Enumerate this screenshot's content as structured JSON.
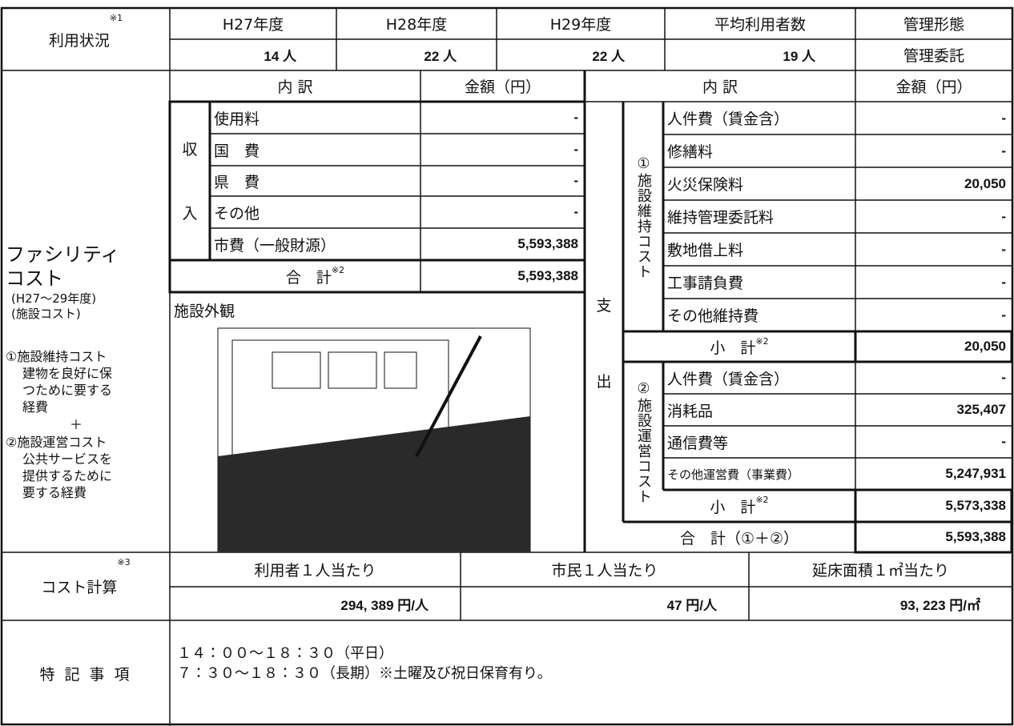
{
  "usage": {
    "label": "利用状況",
    "label_sup": "※1",
    "headers": [
      "H27年度",
      "H28年度",
      "H29年度",
      "平均利用者数",
      "管理形態"
    ],
    "values": [
      "14 人",
      "22 人",
      "22 人",
      "19 人",
      "管理委託"
    ]
  },
  "facility_cost": {
    "label_lines": [
      "ファシリティ",
      "コスト"
    ],
    "period": "(H27～29年度)",
    "sub": "(施設コスト)",
    "notes": [
      "①施設維持コスト",
      "建物を良好に保",
      "つために要する",
      "経費",
      "＋",
      "②施設運営コスト",
      "公共サービスを",
      "提供するために",
      "要する経費"
    ],
    "revenue": {
      "header_item": "内 訳",
      "header_amount": "金額（円）",
      "side": [
        "収",
        "入"
      ],
      "rows": [
        {
          "item": "使用料",
          "amount": "-"
        },
        {
          "item": "国　費",
          "amount": "-"
        },
        {
          "item": "県　費",
          "amount": "-"
        },
        {
          "item": "その他",
          "amount": "-"
        },
        {
          "item": "市費（一般財源）",
          "amount": "5,593,388"
        }
      ],
      "total": {
        "label": "合　計",
        "sup": "※2",
        "amount": "5,593,388"
      }
    },
    "photo_label": "施設外観",
    "expenditure": {
      "header_item": "内 訳",
      "header_amount": "金額（円）",
      "side": [
        "支",
        "出"
      ],
      "maintenance": {
        "label": "①施設維持コスト",
        "rows": [
          {
            "item": "人件費（賃金含）",
            "amount": "-"
          },
          {
            "item": "修繕料",
            "amount": "-"
          },
          {
            "item": "火災保険料",
            "amount": "20,050"
          },
          {
            "item": "維持管理委託料",
            "amount": "-"
          },
          {
            "item": "敷地借上料",
            "amount": "-"
          },
          {
            "item": "工事請負費",
            "amount": "-"
          },
          {
            "item": "その他維持費",
            "amount": "-"
          }
        ],
        "subtotal": {
          "label": "小　計",
          "sup": "※2",
          "amount": "20,050"
        }
      },
      "operation": {
        "label": "②施設運営コスト",
        "rows": [
          {
            "item": "人件費（賃金含）",
            "amount": "-"
          },
          {
            "item": "消耗品",
            "amount": "325,407"
          },
          {
            "item": "通信費等",
            "amount": "-"
          },
          {
            "item": "その他運営費（事業費）",
            "amount": "5,247,931"
          }
        ],
        "subtotal": {
          "label": "小　計",
          "sup": "※2",
          "amount": "5,573,338"
        }
      },
      "total": {
        "label": "合　計（①＋②）",
        "amount": "5,593,388"
      }
    }
  },
  "cost_calc": {
    "label": "コスト計算",
    "sup": "※3",
    "headers": [
      "利用者１人当たり",
      "市民１人当たり",
      "延床面積１㎡当たり"
    ],
    "values": [
      "294, 389 円/人",
      "47 円/人",
      "93, 223 円/㎡"
    ]
  },
  "remarks": {
    "label": "特 記 事 項",
    "lines": [
      "１４：００～１８：３０（平日）",
      "７：３０～１８：３０（長期）※土曜及び祝日保育有り。"
    ]
  }
}
